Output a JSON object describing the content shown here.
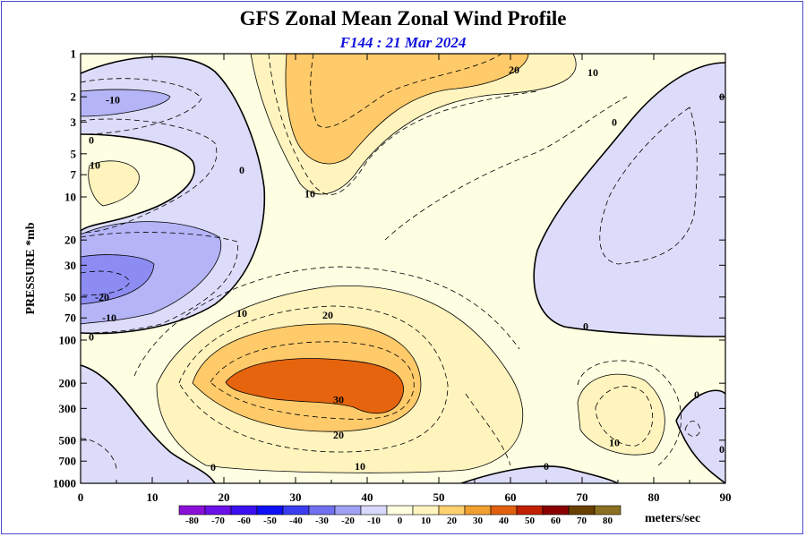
{
  "chart_data": {
    "type": "contour",
    "title": "GFS Zonal Mean Zonal Wind Profile",
    "subtitle": "F144 : 21 Mar 2024",
    "ylabel": "PRESSURE *mb",
    "xlabel": "",
    "x_ticks": [
      0,
      10,
      20,
      30,
      40,
      50,
      60,
      70,
      80,
      90
    ],
    "xlim": [
      0,
      90
    ],
    "y_scale": "log",
    "y_ticks": [
      "1",
      "2",
      "3",
      "5",
      "7",
      "10",
      "20",
      "30",
      "50",
      "70",
      "100",
      "200",
      "300",
      "500",
      "700",
      "1000"
    ],
    "ylim": [
      1000,
      1
    ],
    "contour_interval": 10,
    "contour_labels": [
      {
        "text": "-10",
        "x": 4.5,
        "y": 2.1
      },
      {
        "text": "0",
        "x": 1.5,
        "y": 4.0
      },
      {
        "text": "10",
        "x": 2.0,
        "y": 6.0
      },
      {
        "text": "0",
        "x": 22.5,
        "y": 6.5
      },
      {
        "text": "20",
        "x": 60.5,
        "y": 1.3
      },
      {
        "text": "10",
        "x": 71.5,
        "y": 1.35
      },
      {
        "text": "10",
        "x": 32.0,
        "y": 9.5
      },
      {
        "text": "0",
        "x": 74.5,
        "y": 3.0
      },
      {
        "text": "0",
        "x": 89.5,
        "y": 2.0
      },
      {
        "text": "-20",
        "x": 3.0,
        "y": 50
      },
      {
        "text": "-10",
        "x": 4.0,
        "y": 70
      },
      {
        "text": "0",
        "x": 1.5,
        "y": 95
      },
      {
        "text": "10",
        "x": 22.5,
        "y": 65
      },
      {
        "text": "20",
        "x": 34.5,
        "y": 67
      },
      {
        "text": "30",
        "x": 36.0,
        "y": 260
      },
      {
        "text": "20",
        "x": 36.0,
        "y": 460
      },
      {
        "text": "10",
        "x": 39.0,
        "y": 760
      },
      {
        "text": "0",
        "x": 18.5,
        "y": 770
      },
      {
        "text": "0",
        "x": 65.0,
        "y": 760
      },
      {
        "text": "0",
        "x": 70.5,
        "y": 80
      },
      {
        "text": "10",
        "x": 74.5,
        "y": 520
      },
      {
        "text": "0",
        "x": 86.0,
        "y": 240
      },
      {
        "text": "0",
        "x": 89.5,
        "y": 580
      }
    ],
    "colorbar": {
      "levels": [
        -80,
        -70,
        -60,
        -50,
        -40,
        -30,
        -20,
        -10,
        0,
        10,
        20,
        30,
        40,
        50,
        60,
        70,
        80
      ],
      "colors": [
        "#8a10d8",
        "#6a10e8",
        "#3a10f0",
        "#1010f8",
        "#3c3cf0",
        "#7070f0",
        "#a0a0f4",
        "#d8d8fa",
        "#fefee0",
        "#fff4c0",
        "#ffd070",
        "#f0a030",
        "#e06010",
        "#c02000",
        "#8a0000",
        "#6a4000",
        "#8a7020"
      ],
      "units": "meters/sec"
    },
    "fill_colors": {
      "neg10": "#dcdcfa",
      "neg20": "#b4b4f6",
      "neg30": "#8c8cf2",
      "pos0": "#fefee2",
      "pos10": "#fff4be",
      "pos20": "#ffca6a",
      "pos30": "#e6640e"
    }
  }
}
